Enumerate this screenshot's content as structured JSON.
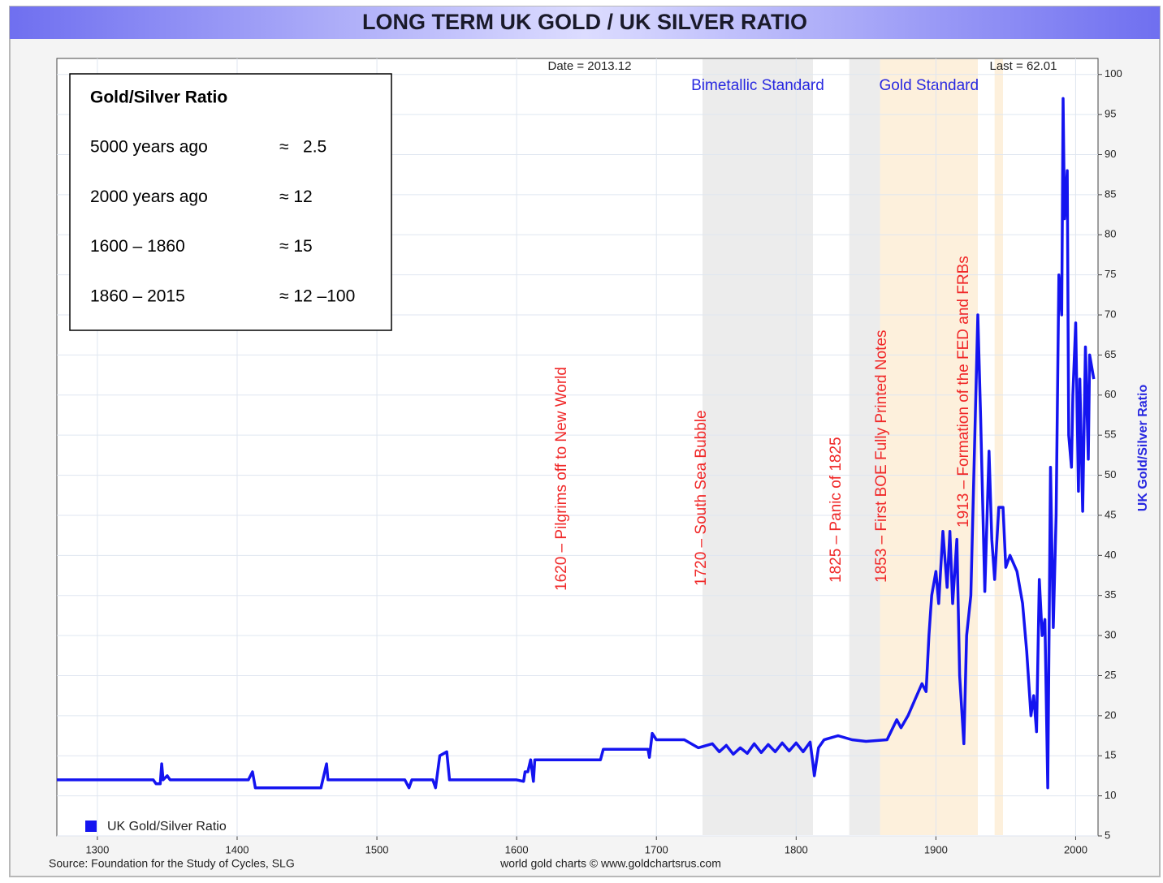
{
  "chart_data": {
    "type": "line",
    "title": "LONG TERM UK GOLD / UK SILVER RATIO",
    "date_label": "Date = 2013.12",
    "last_label": "Last = 62.01",
    "y_axis_label": "UK Gold/Silver Ratio",
    "source": "Source: Foundation for the Study of Cycles, SLG",
    "credit": "world gold charts © www.goldchartsrus.com",
    "xlim": [
      1271,
      2016
    ],
    "ylim": [
      5,
      102
    ],
    "xticks": [
      1300,
      1400,
      1500,
      1600,
      1700,
      1800,
      1900,
      2000
    ],
    "yticks": [
      5,
      10,
      15,
      20,
      25,
      30,
      35,
      40,
      45,
      50,
      55,
      60,
      65,
      70,
      75,
      80,
      85,
      90,
      95,
      100
    ],
    "grid": true,
    "legend": "bottom-left",
    "bands": [
      {
        "label": "Bimetallic Standard",
        "x": [
          1733,
          1812
        ],
        "color": "#ececec"
      },
      {
        "x": [
          1838,
          1860
        ],
        "color": "#ececec"
      },
      {
        "label": "Gold Standard",
        "x": [
          1860,
          1930
        ],
        "color": "#fdf0dc"
      },
      {
        "x": [
          1942,
          1948
        ],
        "color": "#fdf0dc"
      }
    ],
    "annotations": [
      "1620 – Pilgrims off to New World",
      "1720 – South Sea Bubble",
      "1825 – Panic of 1825",
      "1853 – First BOE Fully Printed Notes",
      "1913 – Formation of the FED and FRBs"
    ],
    "series": [
      {
        "name": "UK Gold/Silver Ratio",
        "color": "#1414f0",
        "x": [
          1271,
          1340,
          1342,
          1345,
          1346,
          1347,
          1350,
          1352,
          1408,
          1411,
          1413,
          1460,
          1464,
          1465,
          1520,
          1523,
          1525,
          1540,
          1542,
          1545,
          1550,
          1552,
          1600,
          1605,
          1606,
          1608,
          1610,
          1612,
          1613,
          1660,
          1662,
          1694,
          1695,
          1697,
          1700,
          1720,
          1730,
          1740,
          1745,
          1750,
          1755,
          1760,
          1765,
          1770,
          1775,
          1780,
          1785,
          1790,
          1795,
          1800,
          1805,
          1810,
          1812,
          1813,
          1816,
          1820,
          1830,
          1840,
          1850,
          1865,
          1872,
          1875,
          1880,
          1885,
          1890,
          1893,
          1895,
          1897,
          1900,
          1902,
          1905,
          1908,
          1910,
          1912,
          1915,
          1917,
          1920,
          1922,
          1925,
          1930,
          1932,
          1935,
          1938,
          1940,
          1942,
          1945,
          1948,
          1950,
          1953,
          1958,
          1962,
          1965,
          1968,
          1970,
          1972,
          1974,
          1976,
          1978,
          1980,
          1982,
          1984,
          1986,
          1988,
          1990,
          1991,
          1992,
          1994,
          1995,
          1997,
          1998,
          2000,
          2002,
          2003,
          2005,
          2007,
          2009,
          2010,
          2013
        ],
        "values": [
          12,
          12,
          11.5,
          11.5,
          14,
          12,
          12.5,
          12,
          12,
          13,
          11,
          11,
          14,
          12,
          12,
          11,
          12,
          12,
          11,
          15,
          15.5,
          12,
          12,
          11.8,
          13,
          13,
          14.5,
          11.8,
          14.5,
          14.5,
          15.8,
          15.8,
          14.8,
          17.8,
          17,
          17,
          16,
          16.5,
          15.5,
          16.3,
          15.2,
          16,
          15.3,
          16.5,
          15.4,
          16.4,
          15.5,
          16.6,
          15.6,
          16.6,
          15.5,
          16.7,
          14,
          12.5,
          16,
          17,
          17.5,
          17,
          16.8,
          17,
          19.5,
          18.5,
          20,
          22,
          24,
          23,
          30,
          35,
          38,
          34,
          43,
          36,
          43,
          34,
          42,
          25,
          16.5,
          30,
          35,
          70,
          57,
          35.5,
          53,
          42,
          37,
          46,
          46,
          38.5,
          40,
          38,
          34,
          28,
          20,
          22.5,
          18,
          37,
          30,
          32,
          11,
          51,
          31,
          45,
          75,
          70,
          97,
          82,
          88,
          55,
          51,
          60,
          69,
          48,
          62,
          45.5,
          66,
          52,
          65,
          62
        ]
      }
    ]
  },
  "inset": {
    "title": "Gold/Silver Ratio",
    "rows": [
      [
        "5000 years ago",
        "≈   2.5"
      ],
      [
        "2000 years ago",
        "≈ 12"
      ],
      [
        "1600 – 1860",
        "≈ 15"
      ],
      [
        "1860 – 2015",
        "≈ 12 –100"
      ]
    ]
  }
}
